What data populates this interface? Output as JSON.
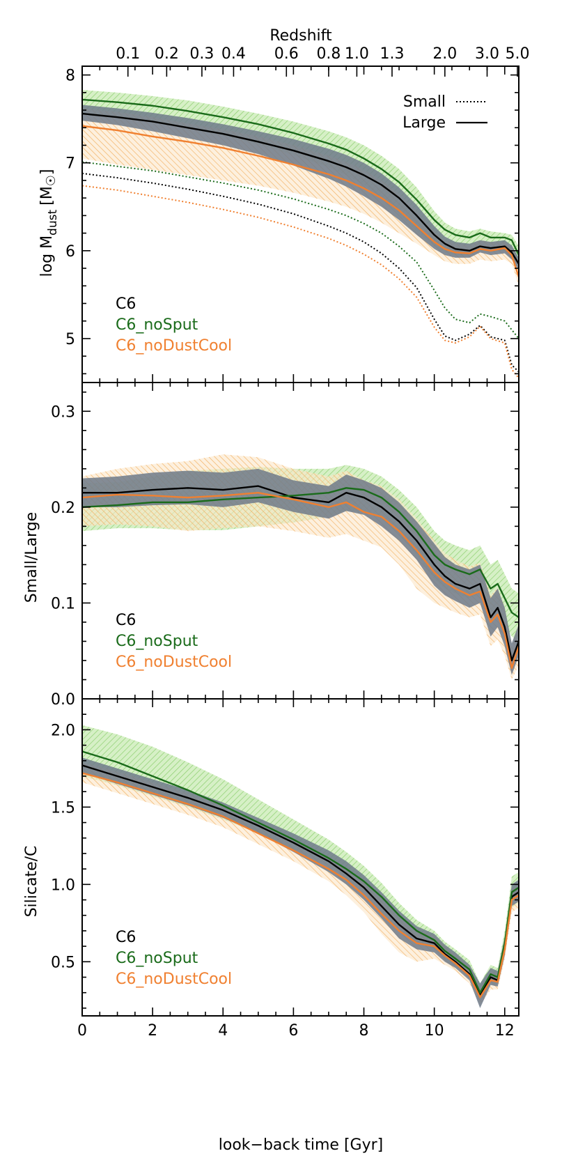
{
  "figure": {
    "top_axis_label": "Redshift",
    "top_axis_ticks": [
      "0.1",
      "0.2",
      "0.3",
      "0.4",
      "0.6",
      "0.8",
      "1.0",
      "1.3",
      "2.0",
      "3.0",
      "5.0"
    ],
    "top_axis_tick_lookback_gyr": [
      1.3,
      2.4,
      3.4,
      4.3,
      5.8,
      7.0,
      7.8,
      8.8,
      10.3,
      11.5,
      12.5
    ],
    "xlabel": "look−back time [Gyr]",
    "colors": {
      "C6": "#000000",
      "C6_noSput": "#1a6b1a",
      "C6_noDustCool": "#f08030",
      "C6_band": "#6e7a8a",
      "noSput_band": "#9fd88a",
      "noDustCool_band": "#f5c07a"
    }
  },
  "chart_data": [
    {
      "type": "line",
      "panel": "top",
      "ylabel_main": "log M",
      "ylabel_sub": "dust",
      "ylabel_unit": "[M",
      "ylabel_unit_close": "]",
      "xlim": [
        0,
        12.4
      ],
      "ylim": [
        4.5,
        8.1
      ],
      "xticks": [
        0,
        2,
        4,
        6,
        8,
        10,
        12
      ],
      "yticks": [
        5,
        6,
        7,
        8
      ],
      "ytick_labels": [
        "5",
        "6",
        "7",
        "8"
      ],
      "style_legend": [
        {
          "label": "Small",
          "style": "dotted"
        },
        {
          "label": "Large",
          "style": "solid"
        }
      ],
      "model_legend": [
        {
          "label": "C6",
          "color": "#000000"
        },
        {
          "label": "C6_noSput",
          "color": "#1a6b1a"
        },
        {
          "label": "C6_noDustCool",
          "color": "#f08030"
        }
      ],
      "x": [
        0,
        1,
        2,
        3,
        4,
        5,
        6,
        7,
        7.5,
        8,
        8.5,
        9,
        9.5,
        10,
        10.3,
        10.6,
        11,
        11.3,
        11.6,
        12,
        12.2,
        12.4
      ],
      "series": [
        {
          "name": "C6",
          "style": "solid",
          "color": "#000000",
          "values": [
            7.56,
            7.52,
            7.47,
            7.4,
            7.33,
            7.24,
            7.14,
            7.02,
            6.95,
            6.86,
            6.75,
            6.6,
            6.4,
            6.18,
            6.08,
            6.02,
            6.0,
            6.05,
            6.03,
            6.05,
            5.98,
            5.85
          ]
        },
        {
          "name": "C6_noSput",
          "style": "solid",
          "color": "#1a6b1a",
          "values": [
            7.72,
            7.69,
            7.65,
            7.59,
            7.52,
            7.44,
            7.34,
            7.22,
            7.15,
            7.05,
            6.93,
            6.78,
            6.58,
            6.35,
            6.24,
            6.18,
            6.15,
            6.2,
            6.15,
            6.15,
            6.12,
            5.95
          ]
        },
        {
          "name": "C6_noDustCool",
          "style": "solid",
          "color": "#f08030",
          "values": [
            7.42,
            7.37,
            7.3,
            7.24,
            7.17,
            7.08,
            6.98,
            6.87,
            6.8,
            6.71,
            6.6,
            6.46,
            6.28,
            6.1,
            6.02,
            5.98,
            5.97,
            6.02,
            6.0,
            6.03,
            5.95,
            5.7
          ]
        },
        {
          "name": "C6",
          "style": "dotted",
          "color": "#000000",
          "values": [
            6.88,
            6.83,
            6.77,
            6.7,
            6.62,
            6.53,
            6.42,
            6.28,
            6.2,
            6.1,
            5.97,
            5.8,
            5.58,
            5.22,
            5.03,
            4.98,
            5.05,
            5.15,
            5.02,
            4.98,
            4.7,
            4.62
          ]
        },
        {
          "name": "C6_noSput",
          "style": "dotted",
          "color": "#1a6b1a",
          "values": [
            7.01,
            6.96,
            6.91,
            6.84,
            6.77,
            6.69,
            6.59,
            6.47,
            6.4,
            6.31,
            6.2,
            6.05,
            5.87,
            5.55,
            5.35,
            5.22,
            5.18,
            5.28,
            5.25,
            5.2,
            5.1,
            5.0
          ]
        },
        {
          "name": "C6_noDustCool",
          "style": "dotted",
          "color": "#f08030",
          "values": [
            6.74,
            6.69,
            6.62,
            6.55,
            6.47,
            6.38,
            6.27,
            6.14,
            6.06,
            5.96,
            5.84,
            5.68,
            5.47,
            5.13,
            4.98,
            4.95,
            5.02,
            5.14,
            5.0,
            4.95,
            4.65,
            4.55
          ]
        }
      ],
      "bands": [
        {
          "name": "C6_noSput",
          "color": "#9fd88a",
          "lower": [
            7.56,
            7.52,
            7.46,
            7.39,
            7.31,
            7.21,
            7.09,
            6.95,
            6.86,
            6.75,
            6.6,
            6.42,
            6.22,
            6.05,
            5.98,
            5.95,
            5.95,
            6.0,
            5.98,
            6.0,
            5.95,
            5.85
          ],
          "upper": [
            7.83,
            7.8,
            7.76,
            7.71,
            7.64,
            7.56,
            7.47,
            7.36,
            7.29,
            7.2,
            7.08,
            6.93,
            6.72,
            6.45,
            6.32,
            6.25,
            6.22,
            6.25,
            6.22,
            6.2,
            6.18,
            6.05
          ]
        },
        {
          "name": "C6_noDustCool",
          "color": "#f5c07a",
          "lower": [
            7.05,
            6.98,
            6.92,
            6.86,
            6.8,
            6.74,
            6.66,
            6.56,
            6.5,
            6.42,
            6.32,
            6.2,
            6.08,
            5.95,
            5.88,
            5.85,
            5.85,
            5.9,
            5.88,
            5.9,
            5.85,
            5.6
          ],
          "upper": [
            7.62,
            7.58,
            7.52,
            7.45,
            7.38,
            7.3,
            7.2,
            7.08,
            7.01,
            6.92,
            6.8,
            6.65,
            6.45,
            6.22,
            6.12,
            6.08,
            6.06,
            6.12,
            6.1,
            6.1,
            6.05,
            5.85
          ]
        },
        {
          "name": "C6",
          "color": "#6e7a8a",
          "lower": [
            7.48,
            7.43,
            7.36,
            7.28,
            7.2,
            7.1,
            6.97,
            6.82,
            6.73,
            6.62,
            6.5,
            6.35,
            6.18,
            6.02,
            5.95,
            5.92,
            5.92,
            5.98,
            5.95,
            5.97,
            5.9,
            5.78
          ],
          "upper": [
            7.66,
            7.62,
            7.57,
            7.51,
            7.44,
            7.36,
            7.27,
            7.16,
            7.09,
            7.0,
            6.88,
            6.72,
            6.52,
            6.28,
            6.16,
            6.1,
            6.08,
            6.12,
            6.1,
            6.12,
            6.06,
            5.92
          ]
        }
      ]
    },
    {
      "type": "line",
      "panel": "middle",
      "ylabel": "Small/Large",
      "xlim": [
        0,
        12.4
      ],
      "ylim": [
        0.0,
        0.33
      ],
      "xticks": [
        0,
        2,
        4,
        6,
        8,
        10,
        12
      ],
      "yticks": [
        0.0,
        0.1,
        0.2,
        0.3
      ],
      "ytick_labels": [
        "0.0",
        "0.1",
        "0.2",
        "0.3"
      ],
      "model_legend": [
        {
          "label": "C6",
          "color": "#000000"
        },
        {
          "label": "C6_noSput",
          "color": "#1a6b1a"
        },
        {
          "label": "C6_noDustCool",
          "color": "#f08030"
        }
      ],
      "x": [
        0,
        1,
        2,
        3,
        4,
        5,
        6,
        7,
        7.5,
        8,
        8.5,
        9,
        9.5,
        10,
        10.3,
        10.6,
        11,
        11.3,
        11.6,
        11.8,
        12,
        12.2,
        12.4
      ],
      "series": [
        {
          "name": "C6",
          "color": "#000000",
          "values": [
            0.215,
            0.215,
            0.218,
            0.22,
            0.218,
            0.222,
            0.21,
            0.205,
            0.215,
            0.21,
            0.2,
            0.185,
            0.165,
            0.14,
            0.128,
            0.12,
            0.115,
            0.12,
            0.085,
            0.095,
            0.075,
            0.04,
            0.06
          ]
        },
        {
          "name": "C6_noSput",
          "color": "#1a6b1a",
          "values": [
            0.2,
            0.202,
            0.205,
            0.205,
            0.208,
            0.21,
            0.212,
            0.215,
            0.22,
            0.218,
            0.21,
            0.195,
            0.175,
            0.15,
            0.14,
            0.135,
            0.13,
            0.135,
            0.115,
            0.12,
            0.105,
            0.09,
            0.085
          ]
        },
        {
          "name": "C6_noDustCool",
          "color": "#f08030",
          "values": [
            0.21,
            0.213,
            0.212,
            0.21,
            0.212,
            0.215,
            0.208,
            0.2,
            0.205,
            0.195,
            0.19,
            0.175,
            0.155,
            0.132,
            0.122,
            0.115,
            0.108,
            0.112,
            0.08,
            0.088,
            0.068,
            0.032,
            0.055
          ]
        }
      ],
      "bands": [
        {
          "name": "C6_noSput",
          "color": "#9fd88a",
          "lower": [
            0.175,
            0.178,
            0.178,
            0.176,
            0.176,
            0.18,
            0.184,
            0.19,
            0.196,
            0.195,
            0.188,
            0.172,
            0.15,
            0.125,
            0.115,
            0.11,
            0.105,
            0.11,
            0.09,
            0.095,
            0.08,
            0.065,
            0.06
          ],
          "upper": [
            0.225,
            0.226,
            0.232,
            0.238,
            0.24,
            0.242,
            0.24,
            0.24,
            0.244,
            0.24,
            0.232,
            0.218,
            0.2,
            0.175,
            0.165,
            0.16,
            0.155,
            0.16,
            0.14,
            0.145,
            0.13,
            0.115,
            0.11
          ]
        },
        {
          "name": "C6_noDustCool",
          "color": "#f5c07a",
          "lower": [
            0.18,
            0.182,
            0.18,
            0.175,
            0.178,
            0.18,
            0.175,
            0.168,
            0.172,
            0.165,
            0.158,
            0.14,
            0.115,
            0.1,
            0.095,
            0.09,
            0.085,
            0.088,
            0.055,
            0.062,
            0.045,
            0.02,
            0.035
          ],
          "upper": [
            0.232,
            0.24,
            0.245,
            0.248,
            0.255,
            0.252,
            0.24,
            0.232,
            0.238,
            0.228,
            0.222,
            0.208,
            0.188,
            0.165,
            0.152,
            0.145,
            0.138,
            0.142,
            0.108,
            0.116,
            0.095,
            0.055,
            0.08
          ]
        },
        {
          "name": "C6",
          "color": "#6e7a8a",
          "lower": [
            0.2,
            0.2,
            0.202,
            0.203,
            0.2,
            0.205,
            0.195,
            0.188,
            0.196,
            0.192,
            0.18,
            0.165,
            0.145,
            0.118,
            0.108,
            0.102,
            0.095,
            0.1,
            0.065,
            0.075,
            0.055,
            0.025,
            0.045
          ],
          "upper": [
            0.23,
            0.232,
            0.236,
            0.238,
            0.236,
            0.24,
            0.228,
            0.222,
            0.234,
            0.228,
            0.22,
            0.205,
            0.185,
            0.162,
            0.148,
            0.14,
            0.135,
            0.14,
            0.105,
            0.115,
            0.095,
            0.058,
            0.078
          ]
        }
      ]
    },
    {
      "type": "line",
      "panel": "bottom",
      "ylabel": "Silicate/C",
      "xlim": [
        0,
        12.4
      ],
      "ylim": [
        0.15,
        2.2
      ],
      "xticks": [
        0,
        2,
        4,
        6,
        8,
        10,
        12
      ],
      "xtick_labels": [
        "0",
        "2",
        "4",
        "6",
        "8",
        "10",
        "12"
      ],
      "yticks": [
        0.5,
        1.0,
        1.5,
        2.0
      ],
      "ytick_labels": [
        "0.5",
        "1.0",
        "1.5",
        "2.0"
      ],
      "model_legend": [
        {
          "label": "C6",
          "color": "#000000"
        },
        {
          "label": "C6_noSput",
          "color": "#1a6b1a"
        },
        {
          "label": "C6_noDustCool",
          "color": "#f08030"
        }
      ],
      "x": [
        0,
        1,
        2,
        3,
        4,
        5,
        6,
        7,
        7.5,
        8,
        8.5,
        9,
        9.5,
        10,
        10.3,
        10.6,
        11,
        11.3,
        11.6,
        11.8,
        12,
        12.2,
        12.4
      ],
      "series": [
        {
          "name": "C6",
          "color": "#000000",
          "values": [
            1.77,
            1.7,
            1.63,
            1.56,
            1.48,
            1.38,
            1.27,
            1.15,
            1.07,
            0.98,
            0.86,
            0.74,
            0.65,
            0.62,
            0.55,
            0.5,
            0.42,
            0.28,
            0.4,
            0.38,
            0.6,
            0.92,
            0.95
          ]
        },
        {
          "name": "C6_noSput",
          "color": "#1a6b1a",
          "values": [
            1.86,
            1.79,
            1.7,
            1.61,
            1.51,
            1.4,
            1.29,
            1.17,
            1.1,
            1.02,
            0.92,
            0.8,
            0.7,
            0.64,
            0.57,
            0.52,
            0.45,
            0.3,
            0.42,
            0.4,
            0.62,
            0.95,
            0.98
          ]
        },
        {
          "name": "C6_noDustCool",
          "color": "#f08030",
          "values": [
            1.72,
            1.66,
            1.59,
            1.52,
            1.44,
            1.33,
            1.22,
            1.1,
            1.03,
            0.93,
            0.81,
            0.7,
            0.62,
            0.6,
            0.54,
            0.49,
            0.41,
            0.27,
            0.38,
            0.37,
            0.58,
            0.9,
            0.93
          ]
        }
      ],
      "bands": [
        {
          "name": "C6_noSput",
          "color": "#9fd88a",
          "lower": [
            1.7,
            1.64,
            1.57,
            1.5,
            1.42,
            1.33,
            1.23,
            1.12,
            1.04,
            0.94,
            0.82,
            0.7,
            0.62,
            0.58,
            0.52,
            0.47,
            0.4,
            0.27,
            0.36,
            0.35,
            0.55,
            0.85,
            0.88
          ],
          "upper": [
            2.03,
            1.97,
            1.89,
            1.79,
            1.68,
            1.55,
            1.42,
            1.29,
            1.21,
            1.12,
            1.01,
            0.88,
            0.77,
            0.7,
            0.63,
            0.58,
            0.51,
            0.36,
            0.48,
            0.46,
            0.7,
            1.05,
            1.08
          ]
        },
        {
          "name": "C6_noDustCool",
          "color": "#f5c07a",
          "lower": [
            1.66,
            1.59,
            1.52,
            1.45,
            1.37,
            1.26,
            1.15,
            1.02,
            0.93,
            0.82,
            0.68,
            0.56,
            0.5,
            0.52,
            0.48,
            0.44,
            0.36,
            0.22,
            0.32,
            0.32,
            0.52,
            0.82,
            0.85
          ],
          "upper": [
            1.79,
            1.73,
            1.66,
            1.59,
            1.51,
            1.4,
            1.29,
            1.17,
            1.1,
            1.01,
            0.9,
            0.78,
            0.7,
            0.67,
            0.6,
            0.55,
            0.47,
            0.32,
            0.44,
            0.42,
            0.64,
            0.97,
            1.0
          ]
        },
        {
          "name": "C6",
          "color": "#6e7a8a",
          "lower": [
            1.72,
            1.65,
            1.58,
            1.51,
            1.43,
            1.33,
            1.21,
            1.08,
            1.0,
            0.9,
            0.78,
            0.65,
            0.58,
            0.56,
            0.5,
            0.46,
            0.38,
            0.2,
            0.35,
            0.34,
            0.54,
            0.86,
            0.89
          ],
          "upper": [
            1.82,
            1.75,
            1.68,
            1.61,
            1.53,
            1.43,
            1.33,
            1.22,
            1.15,
            1.06,
            0.95,
            0.83,
            0.73,
            0.68,
            0.61,
            0.56,
            0.48,
            0.36,
            0.46,
            0.44,
            0.66,
            1.0,
            1.03
          ]
        }
      ]
    }
  ]
}
